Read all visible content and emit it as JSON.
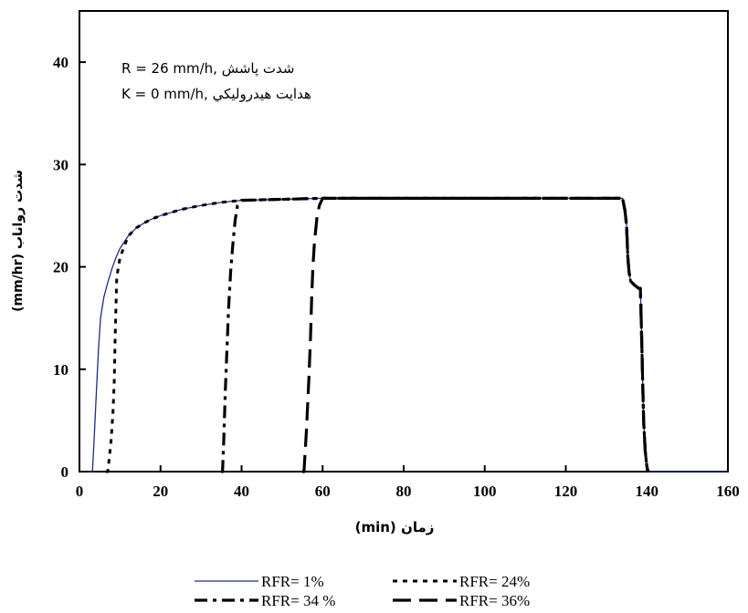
{
  "chart_data": {
    "type": "line",
    "xlabel": "(min) زمان",
    "ylabel": "(mm/hr) شدت رواناب",
    "xlim": [
      0,
      160
    ],
    "ylim": [
      0,
      45
    ],
    "x_ticks": [
      "0",
      "20",
      "40",
      "60",
      "80",
      "100",
      "120",
      "140",
      "160"
    ],
    "y_ticks": [
      "0",
      "10",
      "20",
      "30",
      "40"
    ],
    "annotations": [
      "R = 26 mm/h, شدت پاشش",
      "K = 0 mm/h, هدايت هيدروليكي"
    ],
    "grid": false,
    "legend_position": "bottom",
    "series": [
      {
        "name": "RFR= 1%",
        "color": "#1f2a8c",
        "style": "solid",
        "points": [
          [
            2.3,
            0
          ],
          [
            3.2,
            0
          ],
          [
            3.6,
            3
          ],
          [
            4.2,
            8
          ],
          [
            4.7,
            12
          ],
          [
            5.2,
            15
          ],
          [
            6,
            17
          ],
          [
            7,
            18.5
          ],
          [
            8,
            19.8
          ],
          [
            9,
            20.9
          ],
          [
            10,
            21.8
          ],
          [
            12,
            23
          ],
          [
            14,
            23.8
          ],
          [
            16,
            24.3
          ],
          [
            18,
            24.7
          ],
          [
            20,
            25
          ],
          [
            25,
            25.6
          ],
          [
            30,
            26
          ],
          [
            35,
            26.3
          ],
          [
            40,
            26.5
          ],
          [
            50,
            26.6
          ],
          [
            60,
            26.7
          ],
          [
            134,
            26.7
          ],
          [
            134.6,
            25.5
          ],
          [
            135,
            24
          ],
          [
            135.3,
            21
          ],
          [
            135.6,
            19.5
          ],
          [
            136,
            18.6
          ],
          [
            137,
            18.2
          ],
          [
            138,
            17.9
          ],
          [
            138.4,
            17.9
          ],
          [
            138.6,
            15
          ],
          [
            138.9,
            10
          ],
          [
            139.2,
            5
          ],
          [
            139.6,
            2
          ],
          [
            140,
            0.5
          ],
          [
            140.3,
            0
          ],
          [
            160,
            0
          ]
        ]
      },
      {
        "name": "RFR= 24%",
        "color": "#000000",
        "style": "dotted",
        "points": [
          [
            6.5,
            0
          ],
          [
            7,
            0
          ],
          [
            7.8,
            3
          ],
          [
            8.3,
            6
          ],
          [
            8.6,
            9
          ],
          [
            8.8,
            13
          ],
          [
            9,
            16
          ],
          [
            9.2,
            19
          ],
          [
            10,
            20.9
          ],
          [
            12,
            23
          ],
          [
            14,
            23.8
          ],
          [
            16,
            24.3
          ],
          [
            18,
            24.7
          ],
          [
            20,
            25
          ],
          [
            25,
            25.6
          ],
          [
            30,
            26
          ],
          [
            35,
            26.3
          ],
          [
            40,
            26.5
          ],
          [
            50,
            26.6
          ],
          [
            60,
            26.7
          ],
          [
            134,
            26.7
          ],
          [
            134.6,
            25.5
          ],
          [
            135,
            24
          ],
          [
            135.3,
            21
          ],
          [
            135.6,
            19.5
          ],
          [
            136,
            18.6
          ],
          [
            137,
            18.2
          ],
          [
            138,
            17.9
          ],
          [
            138.4,
            17.9
          ],
          [
            138.6,
            15
          ],
          [
            138.9,
            10
          ],
          [
            139.2,
            5
          ],
          [
            139.6,
            2
          ],
          [
            140,
            0.5
          ],
          [
            140.3,
            0
          ]
        ]
      },
      {
        "name": "RFR= 34 %",
        "color": "#000000",
        "style": "dashdot",
        "points": [
          [
            35,
            0
          ],
          [
            35.3,
            0
          ],
          [
            35.6,
            3
          ],
          [
            36,
            8
          ],
          [
            36.4,
            12
          ],
          [
            36.8,
            16
          ],
          [
            37.3,
            19.5
          ],
          [
            37.8,
            22
          ],
          [
            38.4,
            24.5
          ],
          [
            39,
            26
          ],
          [
            40,
            26.5
          ],
          [
            50,
            26.6
          ],
          [
            60,
            26.7
          ],
          [
            134,
            26.7
          ],
          [
            134.6,
            25.5
          ],
          [
            135,
            24
          ],
          [
            135.3,
            21
          ],
          [
            135.6,
            19.5
          ],
          [
            136,
            18.6
          ],
          [
            137,
            18.2
          ],
          [
            138,
            17.9
          ],
          [
            138.4,
            17.9
          ],
          [
            138.6,
            15
          ],
          [
            138.9,
            10
          ],
          [
            139.2,
            5
          ],
          [
            139.6,
            2
          ],
          [
            140,
            0.5
          ],
          [
            140.3,
            0
          ]
        ]
      },
      {
        "name": "RFR= 36%",
        "color": "#000000",
        "style": "longdash",
        "points": [
          [
            55,
            0
          ],
          [
            55.4,
            0
          ],
          [
            56,
            4
          ],
          [
            56.6,
            9
          ],
          [
            57,
            13
          ],
          [
            57.3,
            17
          ],
          [
            57.6,
            20
          ],
          [
            58,
            22.5
          ],
          [
            58.6,
            24.8
          ],
          [
            59.2,
            26
          ],
          [
            60,
            26.7
          ],
          [
            134,
            26.7
          ],
          [
            134.6,
            25.5
          ],
          [
            135,
            24
          ],
          [
            135.3,
            21
          ],
          [
            135.6,
            19.5
          ],
          [
            136,
            18.6
          ],
          [
            137,
            18.2
          ],
          [
            138,
            17.9
          ],
          [
            138.4,
            17.9
          ],
          [
            138.6,
            15
          ],
          [
            138.9,
            10
          ],
          [
            139.2,
            5
          ],
          [
            139.6,
            2
          ],
          [
            140,
            0.5
          ],
          [
            140.3,
            0
          ]
        ]
      }
    ]
  }
}
